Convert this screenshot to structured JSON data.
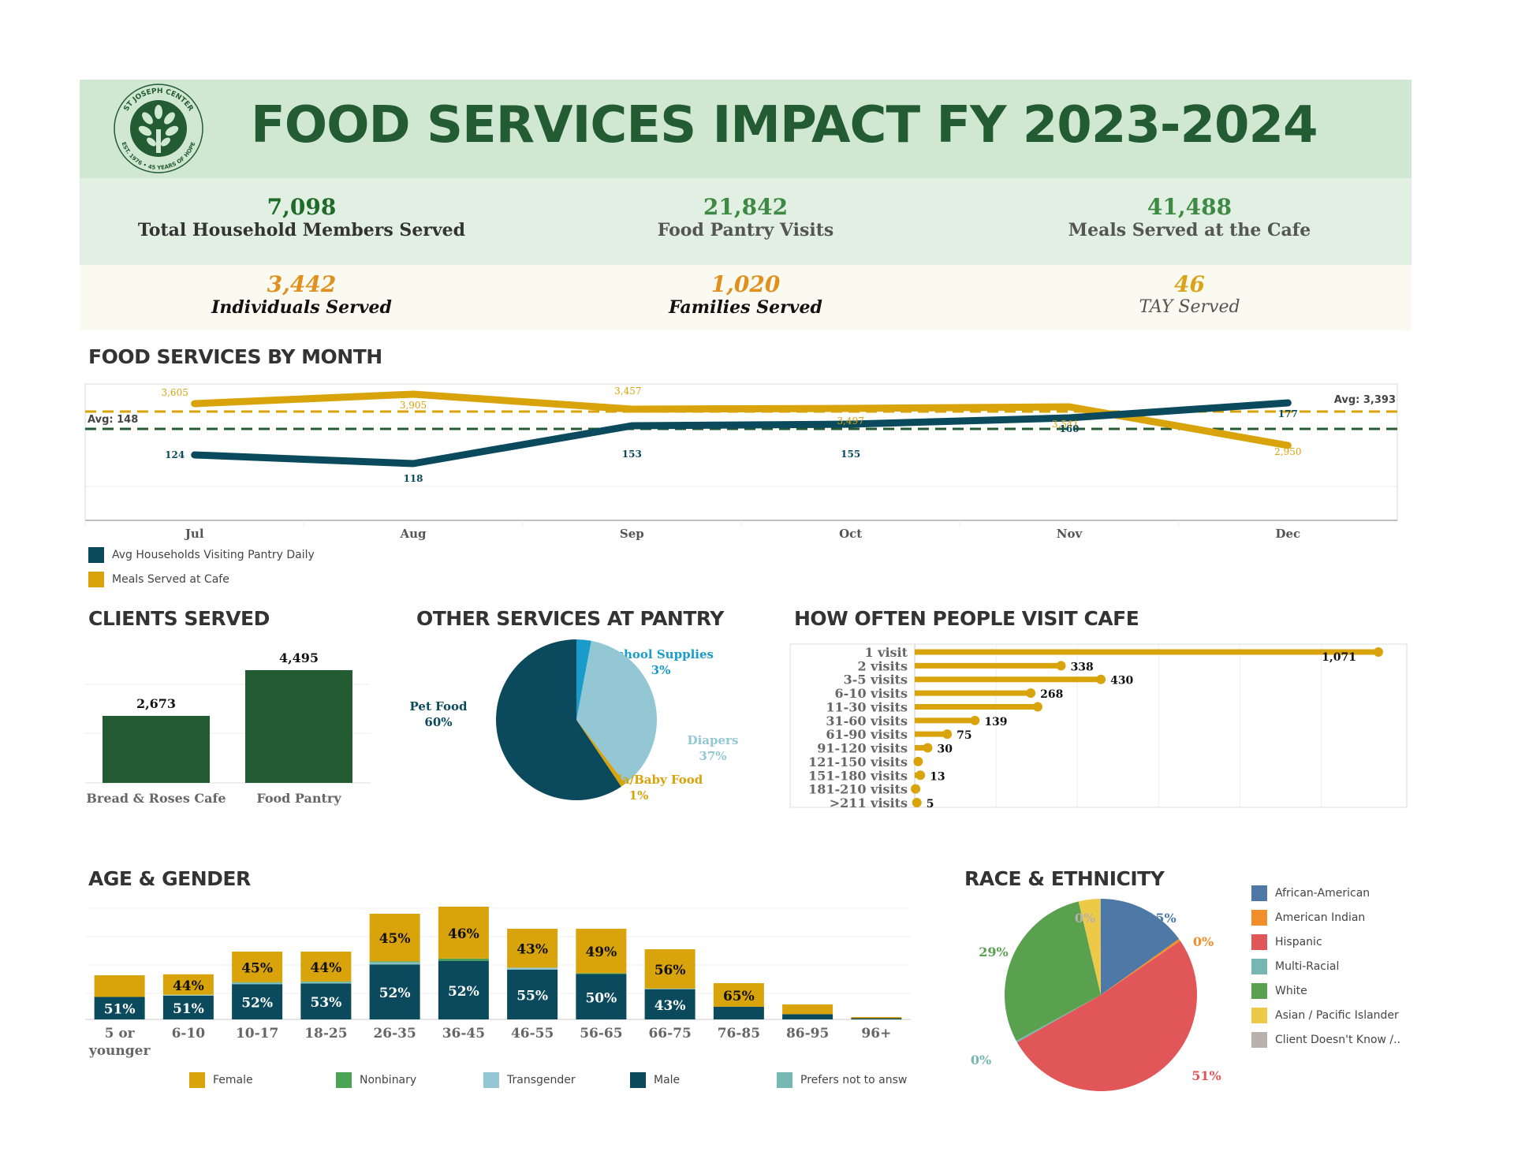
{
  "header": {
    "title": "FOOD SERVICES IMPACT FY 2023-2024",
    "logo_text_top": "ST JOSEPH CENTER",
    "logo_text_bottom": "EST. 1976 • 45 YEARS OF HOPE"
  },
  "kpis_primary": [
    {
      "value": "7,098",
      "label": "Total Household Members Served",
      "color": "#1f6b2a"
    },
    {
      "value": "21,842",
      "label": "Food Pantry Visits",
      "color": "#3e8a45"
    },
    {
      "value": "41,488",
      "label": "Meals Served at the Cafe",
      "color": "#3e8a45"
    }
  ],
  "kpis_secondary": [
    {
      "value": "3,442",
      "label": "Individuals Served",
      "color": "#e0901e"
    },
    {
      "value": "1,020",
      "label": "Families Served",
      "color": "#e0901e"
    },
    {
      "value": "46",
      "label": "TAY Served",
      "color": "#d9a419"
    }
  ],
  "sections": {
    "by_month": "FOOD SERVICES BY MONTH",
    "clients": "CLIENTS SERVED",
    "other": "OTHER SERVICES AT PANTRY",
    "cafe": "HOW OFTEN PEOPLE VISIT CAFE",
    "age": "AGE & GENDER",
    "race": "RACE & ETHNICITY"
  },
  "chart_data": [
    {
      "id": "by_month",
      "type": "line",
      "title": "FOOD SERVICES BY MONTH",
      "categories": [
        "Jul",
        "Aug",
        "Sep",
        "Oct",
        "Nov",
        "Dec"
      ],
      "series": [
        {
          "name": "Avg Households Visiting Pantry Daily",
          "color": "#0b4a5c",
          "values": [
            124,
            118,
            153,
            155,
            160,
            177
          ],
          "avg": 148,
          "avg_label": "Avg: 148",
          "avg_color": "#235b33"
        },
        {
          "name": "Meals Served at Cafe",
          "color": "#d9a30b",
          "values": [
            3605,
            3905,
            3457,
            3497,
            3541,
            2950
          ],
          "avg": 3393,
          "avg_label": "Avg: 3,393",
          "avg_color": "#d9a30b"
        }
      ],
      "legend": "bottom-left",
      "grid": true
    },
    {
      "id": "clients",
      "type": "bar",
      "title": "CLIENTS SERVED",
      "categories": [
        "Bread & Roses Cafe",
        "Food Pantry"
      ],
      "values": [
        2673,
        4495
      ],
      "labels": [
        "2,673",
        "4,495"
      ],
      "color": "#235b33",
      "ylim": [
        0,
        5000
      ]
    },
    {
      "id": "other",
      "type": "pie",
      "title": "OTHER SERVICES AT PANTRY",
      "slices": [
        {
          "name": "School Supplies",
          "value": 3,
          "label": "3%",
          "color": "#1a9ccb"
        },
        {
          "name": "Diapers",
          "value": 37,
          "label": "37%",
          "color": "#92c7d3"
        },
        {
          "name": "Formula/Baby Food",
          "value": 1,
          "label": "1%",
          "color": "#d9a30b"
        },
        {
          "name": "Pet Food",
          "value": 60,
          "label": "60%",
          "color": "#0b4a5c"
        }
      ]
    },
    {
      "id": "cafe",
      "type": "bar",
      "orientation": "horizontal",
      "title": "HOW OFTEN PEOPLE VISIT CAFE",
      "categories": [
        "1 visit",
        "2 visits",
        "3-5 visits",
        "6-10 visits",
        "11-30 visits",
        "31-60 visits",
        "61-90 visits",
        "91-120 visits",
        "121-150 visits",
        "151-180 visits",
        "181-210 visits",
        ">211 visits"
      ],
      "values": [
        1071,
        338,
        430,
        268,
        284,
        139,
        75,
        30,
        8,
        13,
        2,
        5
      ],
      "labels": [
        "1,071",
        "338",
        "430",
        "268",
        "",
        "139",
        "75",
        "30",
        "",
        "13",
        "",
        "5"
      ],
      "color": "#d9a30b",
      "xlim": [
        0,
        1200
      ]
    },
    {
      "id": "age",
      "type": "bar",
      "stacked": true,
      "title": "AGE & GENDER",
      "categories": [
        "5 or younger",
        "6-10",
        "10-17",
        "18-25",
        "26-35",
        "36-45",
        "46-55",
        "56-65",
        "66-75",
        "76-85",
        "86-95",
        "96+"
      ],
      "totals_relative": [
        37,
        39,
        57,
        57,
        89,
        95,
        76,
        76,
        59,
        30,
        12,
        2
      ],
      "series": [
        {
          "name": "Male",
          "color": "#0b4a5c",
          "values": [
            51,
            51,
            52,
            53,
            52,
            52,
            55,
            50,
            43,
            35,
            35,
            50
          ],
          "labels": [
            "51%",
            "51%",
            "52%",
            "53%",
            "52%",
            "52%",
            "55%",
            "50%",
            "43%",
            "",
            "",
            ""
          ]
        },
        {
          "name": "Prefers not to answer",
          "color": "#76b8b3",
          "values": [
            0,
            1,
            1,
            1,
            1,
            0,
            0,
            0,
            1,
            0,
            0,
            0
          ]
        },
        {
          "name": "Transgender",
          "color": "#92c7d3",
          "values": [
            0,
            1,
            1,
            1,
            1,
            0,
            2,
            0,
            0,
            0,
            0,
            0
          ]
        },
        {
          "name": "Nonbinary",
          "color": "#4ca353",
          "values": [
            0,
            0,
            1,
            1,
            1,
            2,
            0,
            1,
            0,
            0,
            0,
            0
          ]
        },
        {
          "name": "Female",
          "color": "#d9a30b",
          "values": [
            49,
            44,
            45,
            44,
            45,
            46,
            43,
            49,
            56,
            65,
            65,
            50
          ],
          "labels": [
            "",
            "44%",
            "45%",
            "44%",
            "45%",
            "46%",
            "43%",
            "49%",
            "56%",
            "65%",
            "",
            ""
          ]
        }
      ],
      "legend": [
        "Female",
        "Nonbinary",
        "Transgender",
        "Male",
        "Prefers not to answ"
      ],
      "legend_colors": [
        "#d9a30b",
        "#4ca353",
        "#92c7d3",
        "#0b4a5c",
        "#76b8b3"
      ],
      "legend_position": "bottom"
    },
    {
      "id": "race",
      "type": "pie",
      "title": "RACE & ETHNICITY",
      "slices": [
        {
          "name": "African-American",
          "value": 15,
          "label": "15%",
          "color": "#4e79a7"
        },
        {
          "name": "American Indian",
          "value": 0.4,
          "label": "0%",
          "color": "#f28e2b"
        },
        {
          "name": "Hispanic",
          "value": 51,
          "label": "51%",
          "color": "#e15759"
        },
        {
          "name": "Multi-Racial",
          "value": 0.3,
          "label": "0%",
          "color": "#76b7b2"
        },
        {
          "name": "White",
          "value": 29,
          "label": "29%",
          "color": "#59a14f"
        },
        {
          "name": "Asian / Pacific Islander",
          "value": 3.6,
          "label": "",
          "color": "#edc948"
        },
        {
          "name": "Client Doesn't Know /..",
          "value": 0.1,
          "label": "0%",
          "color": "#bab0ac"
        }
      ],
      "legend_position": "right"
    }
  ]
}
